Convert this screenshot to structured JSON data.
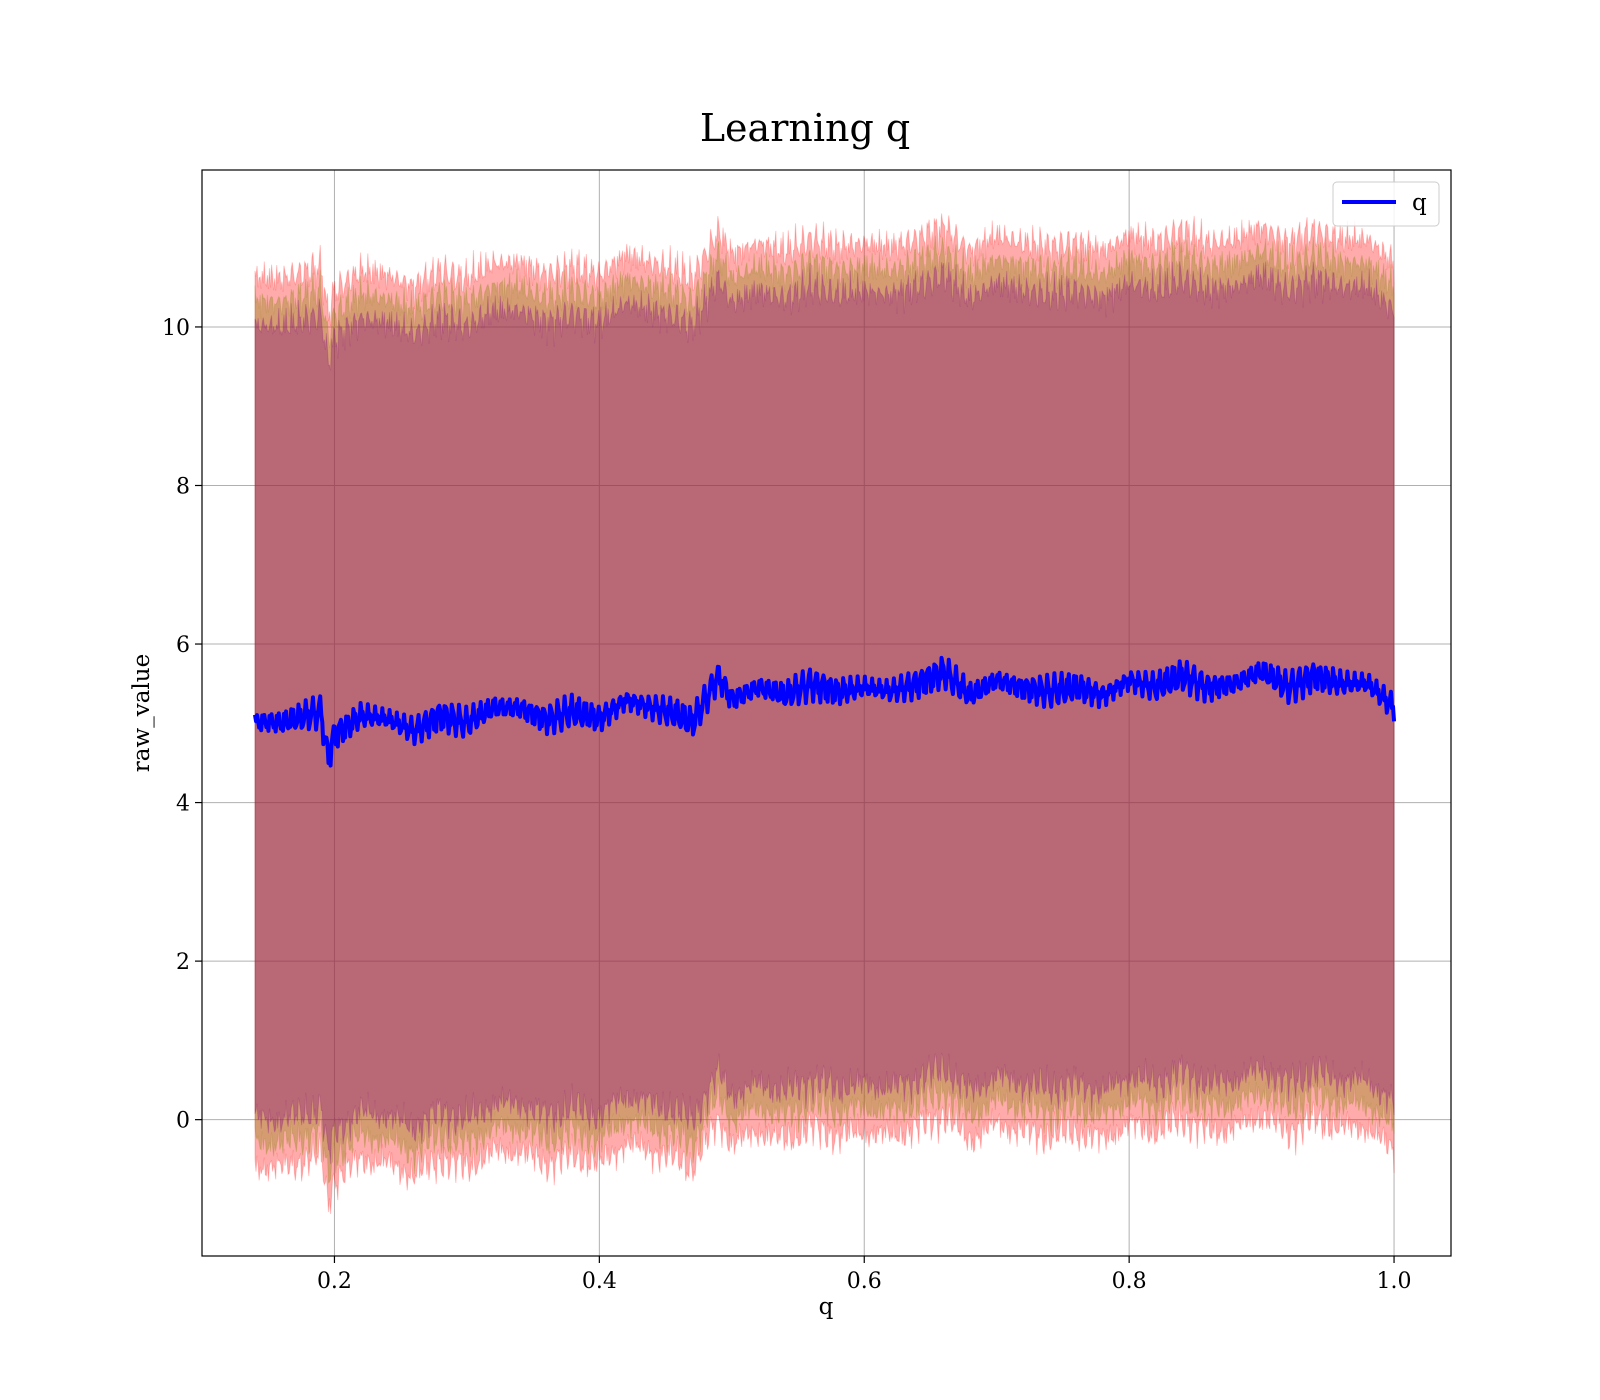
{
  "chart_data": {
    "type": "line",
    "title": "Learning q",
    "xlabel": "q",
    "ylabel": "raw_value",
    "xlim": [
      0.1,
      1.043
    ],
    "ylim": [
      -1.72,
      11.98
    ],
    "xticks": [
      0.2,
      0.4,
      0.6,
      0.8,
      1.0
    ],
    "xtick_labels": [
      "0.2",
      "0.4",
      "0.6",
      "0.8",
      "1.0"
    ],
    "yticks": [
      0,
      2,
      4,
      6,
      8,
      10
    ],
    "ytick_labels": [
      "0",
      "2",
      "4",
      "6",
      "8",
      "10"
    ],
    "grid": true,
    "legend_position": "top-right",
    "series": [
      {
        "name": "q",
        "color": "#0000ff",
        "x": [
          0.14,
          0.16,
          0.18,
          0.19,
          0.195,
          0.2,
          0.22,
          0.24,
          0.26,
          0.28,
          0.3,
          0.32,
          0.34,
          0.36,
          0.38,
          0.4,
          0.42,
          0.44,
          0.46,
          0.47,
          0.49,
          0.5,
          0.52,
          0.54,
          0.56,
          0.58,
          0.6,
          0.62,
          0.64,
          0.66,
          0.68,
          0.7,
          0.72,
          0.74,
          0.76,
          0.78,
          0.8,
          0.82,
          0.84,
          0.86,
          0.88,
          0.9,
          0.92,
          0.94,
          0.96,
          0.98,
          1.0
        ],
        "y": [
          5.02,
          5.0,
          5.1,
          5.15,
          4.55,
          4.85,
          5.1,
          5.05,
          4.9,
          5.1,
          5.0,
          5.2,
          5.2,
          5.05,
          5.15,
          5.05,
          5.3,
          5.2,
          5.1,
          5.0,
          5.6,
          5.3,
          5.45,
          5.35,
          5.5,
          5.4,
          5.45,
          5.4,
          5.5,
          5.65,
          5.35,
          5.55,
          5.45,
          5.4,
          5.45,
          5.35,
          5.55,
          5.45,
          5.6,
          5.45,
          5.5,
          5.65,
          5.45,
          5.6,
          5.5,
          5.5,
          5.2
        ]
      }
    ],
    "bands": [
      {
        "color": "#ff0000",
        "opacity": 0.33,
        "lower_offset": -5.6,
        "upper_offset": 5.6
      },
      {
        "color": "#808000",
        "opacity": 0.33,
        "lower_offset": -5.3,
        "upper_offset": 5.3
      },
      {
        "color": "#800080",
        "opacity": 0.33,
        "lower_offset": -5.0,
        "upper_offset": 5.0
      }
    ]
  }
}
